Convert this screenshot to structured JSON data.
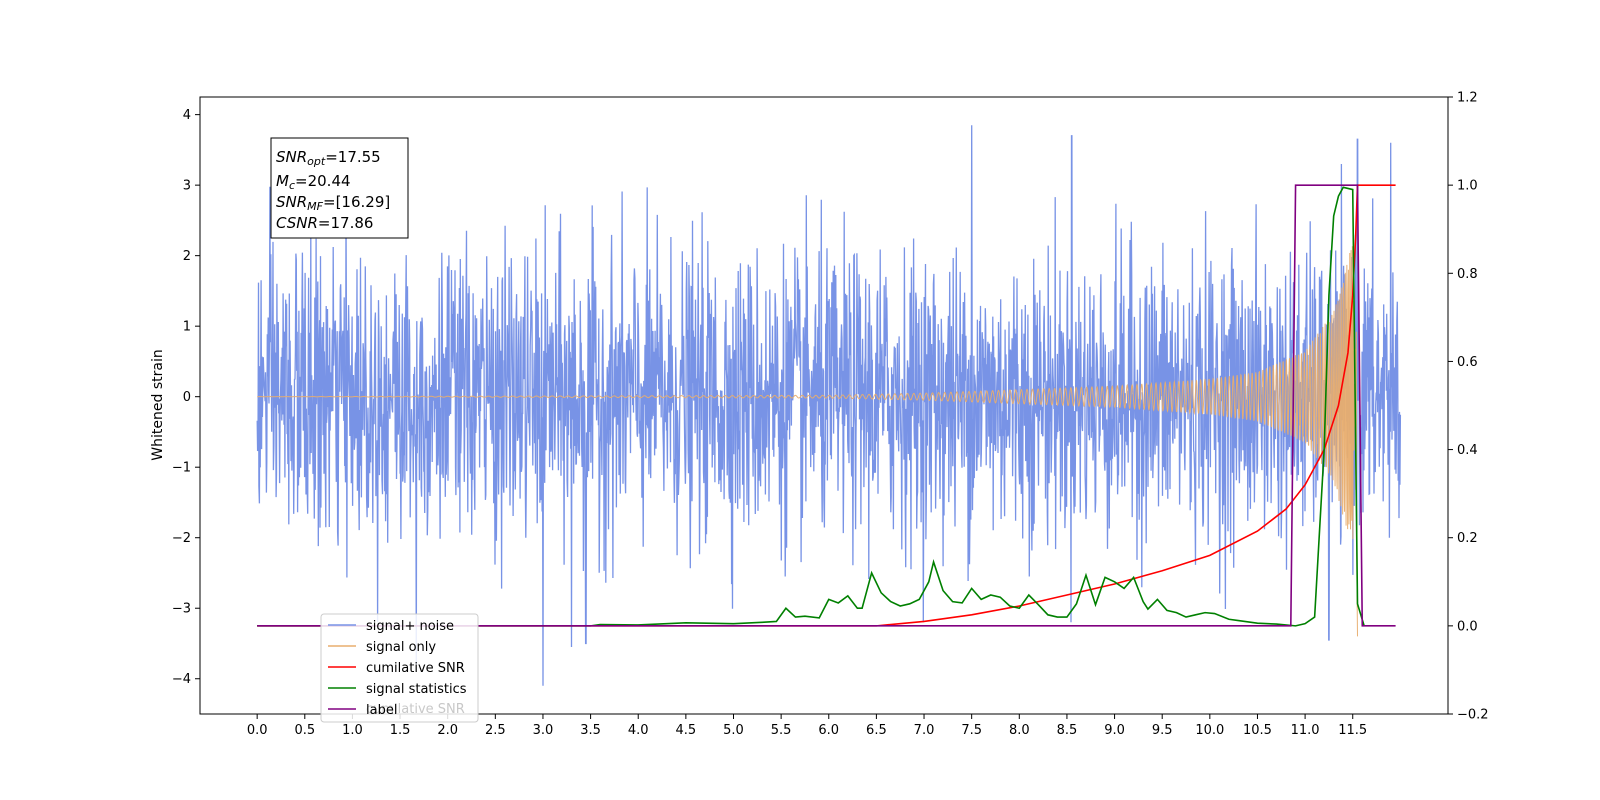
{
  "chart_data": {
    "type": "line",
    "title": "",
    "xlabel": "",
    "ylabel": "Whitened strain",
    "xlim": [
      -0.6,
      12.5
    ],
    "ylim": [
      -4.5,
      4.25
    ],
    "y2lim": [
      -0.2,
      1.2
    ],
    "grid": false,
    "x_ticks": [
      "0.0",
      "0.5",
      "1.0",
      "1.5",
      "2.0",
      "2.5",
      "3.0",
      "3.5",
      "4.0",
      "4.5",
      "5.0",
      "5.5",
      "6.0",
      "6.5",
      "7.0",
      "7.5",
      "8.0",
      "8.5",
      "9.0",
      "9.5",
      "10.0",
      "10.5",
      "11.0",
      "11.5"
    ],
    "y_ticks": [
      "4",
      "3",
      "2",
      "1",
      "0",
      "−1",
      "−2",
      "−3",
      "−4"
    ],
    "y2_ticks": [
      "1.2",
      "1.0",
      "0.8",
      "0.6",
      "0.4",
      "0.2",
      "0.0",
      "−0.2"
    ],
    "info_box": {
      "snr_opt": {
        "base": "SNR",
        "sub": "opt",
        "value": "=17.55"
      },
      "mc": {
        "base": "M",
        "sub": "c",
        "value": "=20.44"
      },
      "snr_mf": {
        "base": "SNR",
        "sub": "MF",
        "value": "=[16.29]"
      },
      "csnr": {
        "base": "CSNR",
        "value": "=17.86"
      }
    },
    "legend": {
      "placement": "lower-left",
      "entries": [
        "signal+ noise",
        "signal only",
        "cumilative SNR",
        "signal statistics",
        "label"
      ],
      "ghost_text": "cumilative SNR"
    },
    "colors": {
      "signal_noise": "#7893e6",
      "signal_only": "#e8ad6e",
      "cumulative_snr": "#ff0000",
      "signal_statistics": "#008000",
      "label": "#800080"
    },
    "series": [
      {
        "name": "signal+ noise",
        "axis": "left",
        "t_range": [
          0.0,
          12.0
        ],
        "amplitude_std": 1.0,
        "extremes": [
          [
            1.67,
            -3.8
          ],
          [
            3.0,
            -4.1
          ],
          [
            3.3,
            -3.55
          ],
          [
            3.45,
            -3.5
          ],
          [
            7.5,
            3.85
          ],
          [
            8.55,
            3.7
          ],
          [
            11.25,
            -3.45
          ],
          [
            11.55,
            3.65
          ],
          [
            11.9,
            3.6
          ]
        ]
      },
      {
        "name": "signal only",
        "axis": "left",
        "t_range": [
          0.0,
          11.55
        ],
        "merger_time": 11.55,
        "points": [
          [
            0.0,
            0.0
          ],
          [
            6.0,
            0.02
          ],
          [
            7.0,
            0.05
          ],
          [
            8.0,
            0.1
          ],
          [
            9.0,
            0.15
          ],
          [
            10.0,
            0.25
          ],
          [
            10.5,
            0.35
          ],
          [
            11.0,
            0.65
          ],
          [
            11.3,
            1.2
          ],
          [
            11.5,
            2.2
          ],
          [
            11.55,
            -3.4
          ]
        ]
      },
      {
        "name": "cumilative SNR",
        "axis": "right",
        "points": [
          [
            0.0,
            0.0
          ],
          [
            6.5,
            0.0
          ],
          [
            7.0,
            0.01
          ],
          [
            7.5,
            0.025
          ],
          [
            8.0,
            0.045
          ],
          [
            8.5,
            0.07
          ],
          [
            9.0,
            0.095
          ],
          [
            9.5,
            0.125
          ],
          [
            10.0,
            0.16
          ],
          [
            10.5,
            0.215
          ],
          [
            10.8,
            0.265
          ],
          [
            11.0,
            0.32
          ],
          [
            11.2,
            0.4
          ],
          [
            11.35,
            0.5
          ],
          [
            11.45,
            0.62
          ],
          [
            11.5,
            0.75
          ],
          [
            11.53,
            0.88
          ],
          [
            11.55,
            1.0
          ],
          [
            11.57,
            1.0
          ],
          [
            11.95,
            1.0
          ]
        ]
      },
      {
        "name": "signal statistics",
        "axis": "right",
        "points": [
          [
            0.0,
            0.0
          ],
          [
            3.5,
            0.0
          ],
          [
            3.6,
            0.003
          ],
          [
            4.0,
            0.002
          ],
          [
            4.5,
            0.007
          ],
          [
            5.0,
            0.005
          ],
          [
            5.3,
            0.008
          ],
          [
            5.45,
            0.01
          ],
          [
            5.55,
            0.04
          ],
          [
            5.65,
            0.02
          ],
          [
            5.75,
            0.022
          ],
          [
            5.9,
            0.018
          ],
          [
            6.0,
            0.06
          ],
          [
            6.1,
            0.052
          ],
          [
            6.2,
            0.068
          ],
          [
            6.3,
            0.04
          ],
          [
            6.35,
            0.04
          ],
          [
            6.45,
            0.12
          ],
          [
            6.55,
            0.075
          ],
          [
            6.65,
            0.055
          ],
          [
            6.75,
            0.045
          ],
          [
            6.85,
            0.05
          ],
          [
            6.95,
            0.06
          ],
          [
            7.05,
            0.1
          ],
          [
            7.1,
            0.145
          ],
          [
            7.2,
            0.08
          ],
          [
            7.3,
            0.055
          ],
          [
            7.4,
            0.052
          ],
          [
            7.5,
            0.085
          ],
          [
            7.6,
            0.06
          ],
          [
            7.7,
            0.07
          ],
          [
            7.8,
            0.065
          ],
          [
            7.9,
            0.045
          ],
          [
            8.0,
            0.04
          ],
          [
            8.1,
            0.07
          ],
          [
            8.2,
            0.048
          ],
          [
            8.3,
            0.025
          ],
          [
            8.4,
            0.02
          ],
          [
            8.5,
            0.02
          ],
          [
            8.6,
            0.05
          ],
          [
            8.7,
            0.115
          ],
          [
            8.8,
            0.048
          ],
          [
            8.9,
            0.11
          ],
          [
            9.0,
            0.1
          ],
          [
            9.1,
            0.085
          ],
          [
            9.2,
            0.11
          ],
          [
            9.3,
            0.055
          ],
          [
            9.35,
            0.038
          ],
          [
            9.45,
            0.06
          ],
          [
            9.55,
            0.035
          ],
          [
            9.65,
            0.03
          ],
          [
            9.75,
            0.02
          ],
          [
            9.85,
            0.025
          ],
          [
            9.95,
            0.03
          ],
          [
            10.05,
            0.028
          ],
          [
            10.2,
            0.015
          ],
          [
            10.3,
            0.012
          ],
          [
            10.5,
            0.006
          ],
          [
            10.7,
            0.004
          ],
          [
            10.9,
            0.0
          ],
          [
            11.0,
            0.005
          ],
          [
            11.1,
            0.02
          ],
          [
            11.2,
            0.4
          ],
          [
            11.25,
            0.75
          ],
          [
            11.3,
            0.93
          ],
          [
            11.35,
            0.975
          ],
          [
            11.4,
            0.995
          ],
          [
            11.5,
            0.99
          ],
          [
            11.55,
            0.05
          ],
          [
            11.62,
            0.0
          ]
        ]
      },
      {
        "name": "label",
        "axis": "right",
        "points": [
          [
            0.0,
            0.0
          ],
          [
            10.85,
            0.0
          ],
          [
            10.9,
            1.0
          ],
          [
            11.55,
            1.0
          ],
          [
            11.6,
            0.0
          ],
          [
            11.95,
            0.0
          ]
        ]
      }
    ]
  }
}
